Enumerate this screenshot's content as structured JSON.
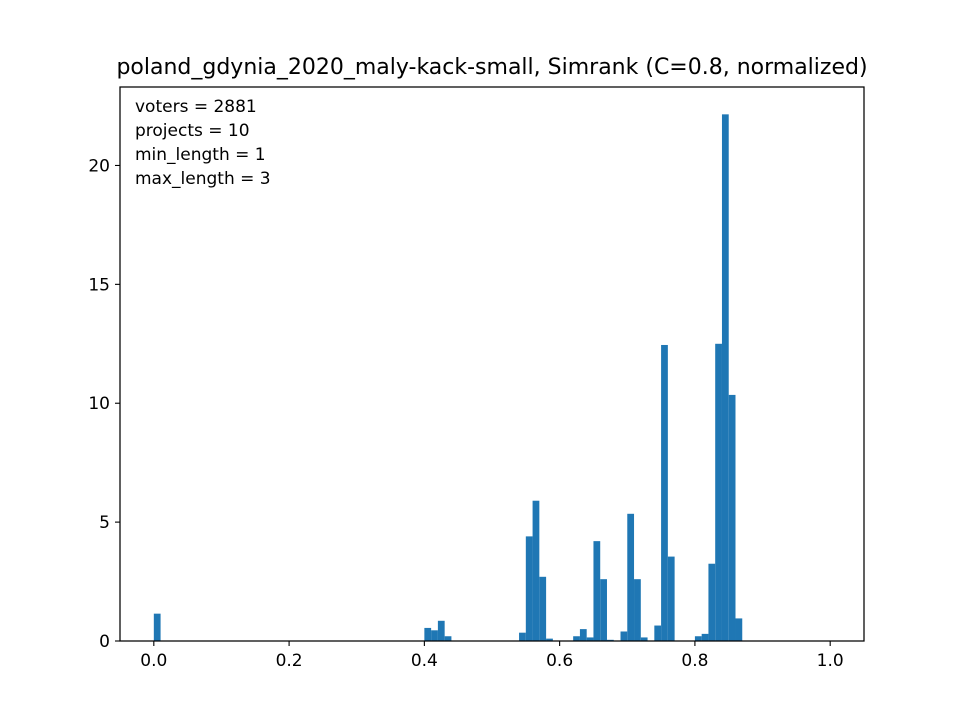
{
  "chart_data": {
    "type": "bar",
    "title": "poland_gdynia_2020_maly-kack-small, Simrank (C=0.8, normalized)",
    "xlabel": "",
    "ylabel": "",
    "xlim": [
      -0.05,
      1.05
    ],
    "ylim": [
      0,
      23.3
    ],
    "bin_width": 0.01,
    "bar_color": "#1f77b4",
    "grid": false,
    "x_ticks": [
      {
        "value": 0.0,
        "label": "0.0"
      },
      {
        "value": 0.2,
        "label": "0.2"
      },
      {
        "value": 0.4,
        "label": "0.4"
      },
      {
        "value": 0.6,
        "label": "0.6"
      },
      {
        "value": 0.8,
        "label": "0.8"
      },
      {
        "value": 1.0,
        "label": "1.0"
      }
    ],
    "y_ticks": [
      {
        "value": 0,
        "label": "0"
      },
      {
        "value": 5,
        "label": "5"
      },
      {
        "value": 10,
        "label": "10"
      },
      {
        "value": 15,
        "label": "15"
      },
      {
        "value": 20,
        "label": "20"
      }
    ],
    "annotations": [
      "voters = 2881",
      "projects = 10",
      "min_length = 1",
      "max_length = 3"
    ],
    "bins": [
      {
        "x": 0.0,
        "value": 1.15
      },
      {
        "x": 0.4,
        "value": 0.55
      },
      {
        "x": 0.41,
        "value": 0.45
      },
      {
        "x": 0.42,
        "value": 0.85
      },
      {
        "x": 0.43,
        "value": 0.2
      },
      {
        "x": 0.54,
        "value": 0.35
      },
      {
        "x": 0.55,
        "value": 4.4
      },
      {
        "x": 0.56,
        "value": 5.9
      },
      {
        "x": 0.57,
        "value": 2.7
      },
      {
        "x": 0.58,
        "value": 0.1
      },
      {
        "x": 0.62,
        "value": 0.2
      },
      {
        "x": 0.63,
        "value": 0.5
      },
      {
        "x": 0.64,
        "value": 0.15
      },
      {
        "x": 0.65,
        "value": 4.2
      },
      {
        "x": 0.66,
        "value": 2.6
      },
      {
        "x": 0.67,
        "value": 0.05
      },
      {
        "x": 0.69,
        "value": 0.4
      },
      {
        "x": 0.7,
        "value": 5.35
      },
      {
        "x": 0.71,
        "value": 2.6
      },
      {
        "x": 0.72,
        "value": 0.15
      },
      {
        "x": 0.74,
        "value": 0.65
      },
      {
        "x": 0.75,
        "value": 12.45
      },
      {
        "x": 0.76,
        "value": 3.55
      },
      {
        "x": 0.8,
        "value": 0.2
      },
      {
        "x": 0.81,
        "value": 0.3
      },
      {
        "x": 0.82,
        "value": 3.25
      },
      {
        "x": 0.83,
        "value": 12.5
      },
      {
        "x": 0.84,
        "value": 22.15
      },
      {
        "x": 0.85,
        "value": 10.35
      },
      {
        "x": 0.86,
        "value": 0.95
      }
    ]
  }
}
